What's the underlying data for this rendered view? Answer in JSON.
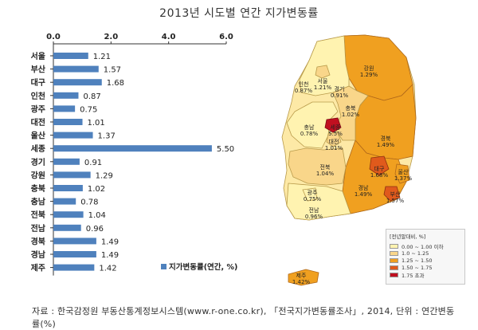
{
  "title": "2013년 시도별 연간 지가변동률",
  "source": "자료 : 한국감정원 부동산통계정보시스템(www.r-one.co.kr), 「전국지가변동률조사」, 2014, 단위 : 연간변동률(%)",
  "chart_data": {
    "type": "bar",
    "orientation": "horizontal",
    "categories": [
      "서울",
      "부산",
      "대구",
      "인천",
      "광주",
      "대전",
      "울산",
      "세종",
      "경기",
      "강원",
      "충북",
      "충남",
      "전북",
      "전남",
      "경북",
      "경남",
      "제주"
    ],
    "values": [
      1.21,
      1.57,
      1.68,
      0.87,
      0.75,
      1.01,
      1.37,
      5.5,
      0.91,
      1.29,
      1.02,
      0.78,
      1.04,
      0.96,
      1.49,
      1.49,
      1.42
    ],
    "value_labels": [
      "1.21",
      "1.57",
      "1.68",
      "0.87",
      "0.75",
      "1.01",
      "1.37",
      "5.50",
      "0.91",
      "1.29",
      "1.02",
      "0.78",
      "1.04",
      "0.96",
      "1.49",
      "1.49",
      "1.42"
    ],
    "xlim": [
      0,
      6
    ],
    "ticks": [
      "0.0",
      "2.0",
      "4.0",
      "6.0"
    ],
    "tick_values": [
      0,
      2,
      4,
      6
    ],
    "legend": "지가변동률(연간, %)",
    "legend_placement": "bottom-right",
    "bar_color": "#4f81bd"
  },
  "map": {
    "regions": [
      {
        "name": "강원",
        "value": "1.29%"
      },
      {
        "name": "서울",
        "value": "1.21%"
      },
      {
        "name": "인천",
        "value": "0.87%"
      },
      {
        "name": "경기",
        "value": "0.91%"
      },
      {
        "name": "충북",
        "value": "1.02%"
      },
      {
        "name": "세종",
        "value": "5.5%"
      },
      {
        "name": "충남",
        "value": "0.78%"
      },
      {
        "name": "대전",
        "value": "1.01%"
      },
      {
        "name": "경북",
        "value": "1.49%"
      },
      {
        "name": "전북",
        "value": "1.04%"
      },
      {
        "name": "대구",
        "value": "1.68%"
      },
      {
        "name": "울산",
        "value": "1.37%"
      },
      {
        "name": "경남",
        "value": "1.49%"
      },
      {
        "name": "부산",
        "value": "1.57%"
      },
      {
        "name": "광주",
        "value": "0.75%"
      },
      {
        "name": "전남",
        "value": "0.96%"
      },
      {
        "name": "제주",
        "value": "1.42%"
      }
    ],
    "legend_title": "[전년말대비, %]",
    "legend_items": [
      {
        "label": "0.00 ~ 1.00 이하",
        "color": "#fff3b0"
      },
      {
        "label": "1.0 ~ 1.25",
        "color": "#f9d68a"
      },
      {
        "label": "1.25 ~ 1.50",
        "color": "#f0a020"
      },
      {
        "label": "1.50 ~ 1.75",
        "color": "#e05a1c"
      },
      {
        "label": "1.75 초과",
        "color": "#c01020"
      }
    ]
  }
}
